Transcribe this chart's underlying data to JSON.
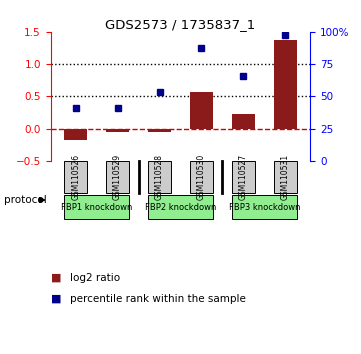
{
  "title": "GDS2573 / 1735837_1",
  "samples": [
    "GSM110526",
    "GSM110529",
    "GSM110528",
    "GSM110530",
    "GSM110527",
    "GSM110531"
  ],
  "log2_ratio": [
    -0.18,
    -0.05,
    -0.06,
    0.57,
    0.22,
    1.37
  ],
  "percentile_rank": [
    0.32,
    0.32,
    0.57,
    1.25,
    0.82,
    1.45
  ],
  "bar_color": "#8B1A1A",
  "dot_color": "#00008B",
  "ylim_left": [
    -0.5,
    1.5
  ],
  "yticks_left": [
    -0.5,
    0.0,
    0.5,
    1.0,
    1.5
  ],
  "yticks_right": [
    0,
    25,
    50,
    75,
    100
  ],
  "hlines": [
    0.5,
    1.0
  ],
  "hline_zero_color": "#cc0000",
  "hline_dotted_color": "#000000",
  "protocol_label": "protocol",
  "legend_bar_label": "log2 ratio",
  "legend_dot_label": "percentile rank within the sample",
  "bg_color": "#ffffff",
  "sample_box_color": "#cccccc",
  "green_color": "#90EE90",
  "bar_width": 0.55,
  "proto_groups": [
    [
      0,
      1,
      "FBP1 knockdown"
    ],
    [
      2,
      3,
      "FBP2 knockdown"
    ],
    [
      4,
      5,
      "FBP3 knockdown"
    ]
  ]
}
